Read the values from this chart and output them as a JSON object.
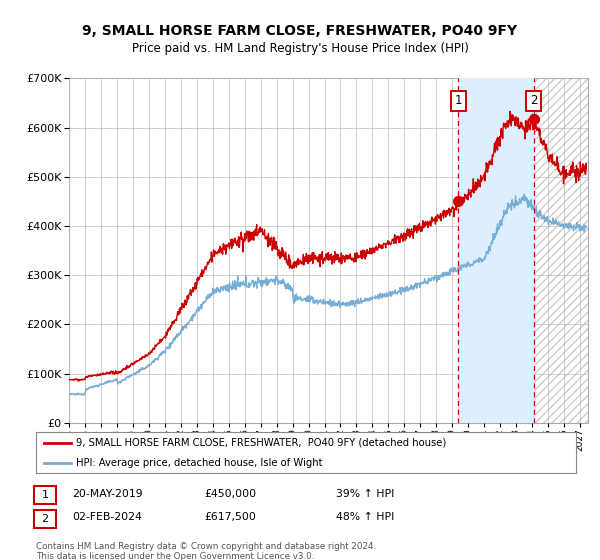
{
  "title": "9, SMALL HORSE FARM CLOSE, FRESHWATER, PO40 9FY",
  "subtitle": "Price paid vs. HM Land Registry's House Price Index (HPI)",
  "legend_line1": "9, SMALL HORSE FARM CLOSE, FRESHWATER,  PO40 9FY (detached house)",
  "legend_line2": "HPI: Average price, detached house, Isle of Wight",
  "sale1_date": "20-MAY-2019",
  "sale1_price": "£450,000",
  "sale1_hpi": "39% ↑ HPI",
  "sale1_year": 2019.38,
  "sale1_value": 450000,
  "sale2_date": "02-FEB-2024",
  "sale2_price": "£617,500",
  "sale2_hpi": "48% ↑ HPI",
  "sale2_year": 2024.09,
  "sale2_value": 617500,
  "ylim": [
    0,
    700000
  ],
  "xlim_start": 1995.0,
  "xlim_end": 2027.5,
  "hpi_color": "#7aadd4",
  "price_color": "#cc0000",
  "background_color": "#ffffff",
  "grid_color": "#bbbbbb",
  "shade_color": "#ddeeff",
  "footnote": "Contains HM Land Registry data © Crown copyright and database right 2024.\nThis data is licensed under the Open Government Licence v3.0."
}
